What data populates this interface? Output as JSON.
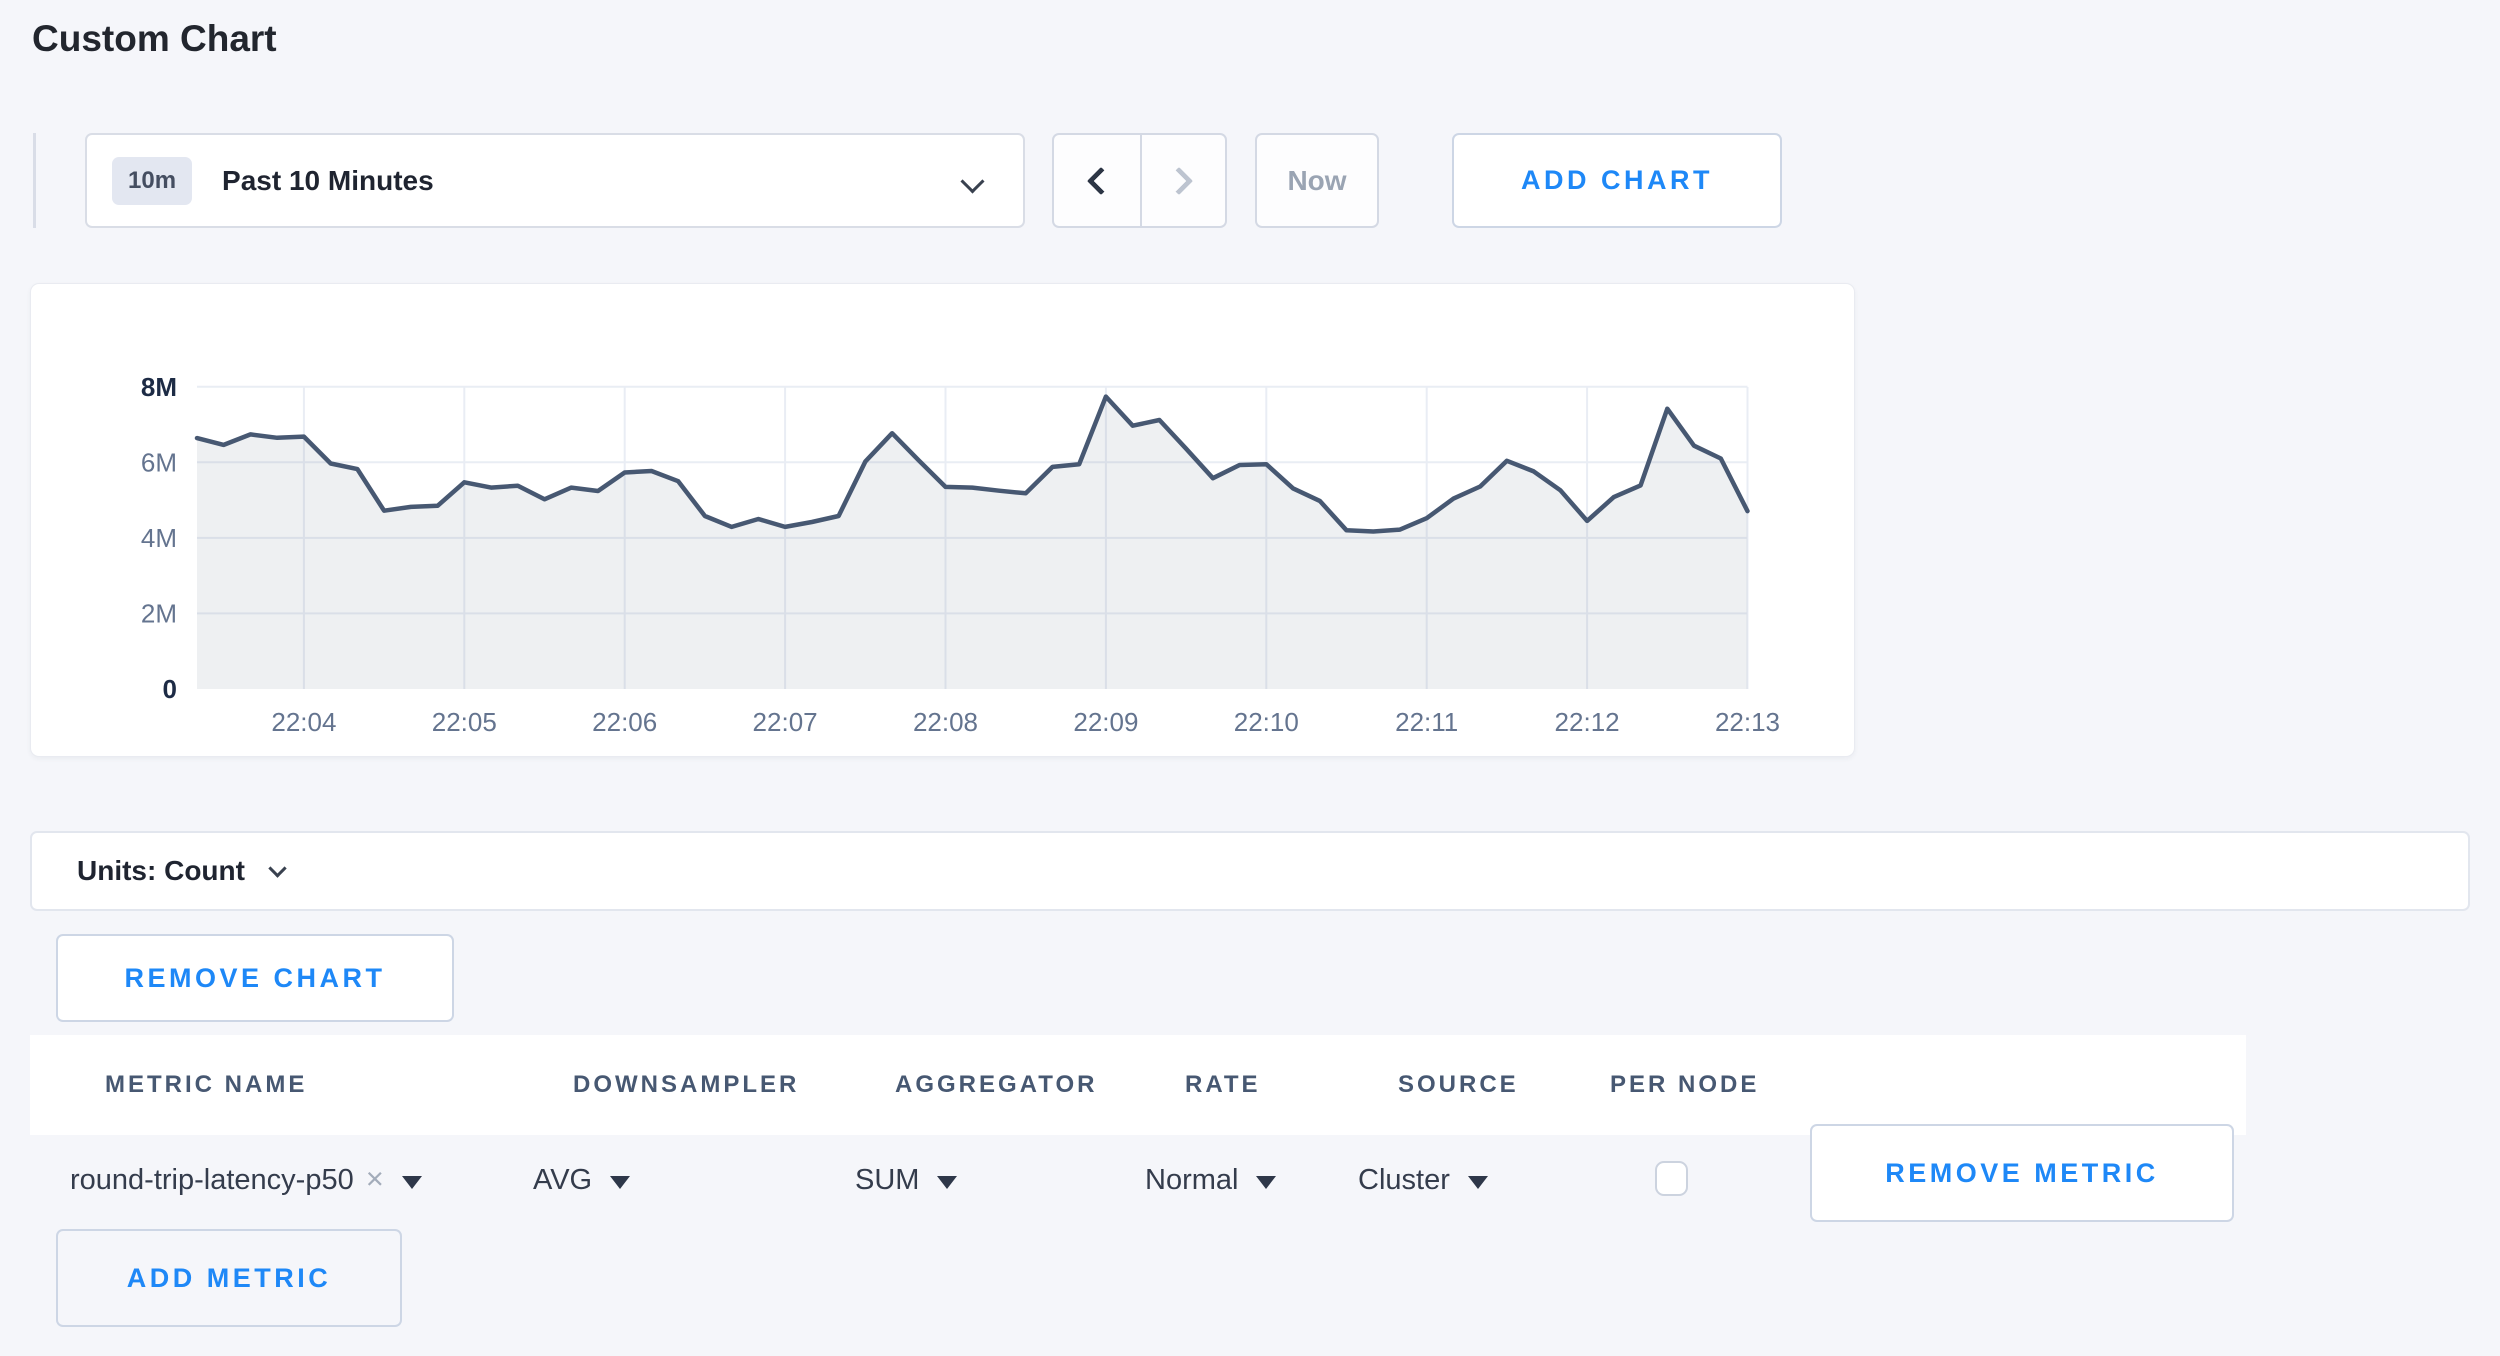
{
  "page": {
    "title": "Custom Chart"
  },
  "colors": {
    "accent_blue": "#1e88f7",
    "line": "#475872",
    "area_fill": "rgba(71,88,114,0.09)",
    "grid": "#e9edf4",
    "page_bg": "#f5f6fa"
  },
  "controls": {
    "timescale_badge": "10m",
    "timescale_label": "Past 10 Minutes",
    "now_label": "Now",
    "add_chart_label": "ADD CHART"
  },
  "units_bar": {
    "label": "Units: Count"
  },
  "remove_chart_label": "REMOVE CHART",
  "metric_table": {
    "headers": [
      "METRIC NAME",
      "DOWNSAMPLER",
      "AGGREGATOR",
      "RATE",
      "SOURCE",
      "PER NODE"
    ],
    "row": {
      "metric_name": "round-trip-latency-p50",
      "clear_icon": "×",
      "downsampler": "AVG",
      "aggregator": "SUM",
      "rate": "Normal",
      "source": "Cluster",
      "per_node_checked": false,
      "remove_label": "REMOVE METRIC"
    },
    "add_metric_label": "ADD METRIC"
  },
  "chart_data": {
    "type": "area",
    "title": "",
    "unit": "count",
    "start_time": "22:03:20",
    "interval_seconds": 10,
    "x_tick_labels": [
      "22:04",
      "22:05",
      "22:06",
      "22:07",
      "22:08",
      "22:09",
      "22:10",
      "22:11",
      "22:12",
      "22:13"
    ],
    "x_tick_indices": [
      4,
      10,
      16,
      22,
      28,
      34,
      40,
      46,
      52,
      58
    ],
    "y_tick_labels": [
      "0",
      "2M",
      "4M",
      "6M",
      "8M"
    ],
    "ylim": [
      0,
      8000000
    ],
    "grid": true,
    "legend": "none",
    "values_millions": [
      6.64,
      6.46,
      6.74,
      6.65,
      6.68,
      5.97,
      5.82,
      4.72,
      4.82,
      4.85,
      5.47,
      5.33,
      5.38,
      5.02,
      5.33,
      5.24,
      5.73,
      5.77,
      5.5,
      4.58,
      4.29,
      4.5,
      4.29,
      4.42,
      4.58,
      6.02,
      6.77,
      6.05,
      5.35,
      5.33,
      5.25,
      5.18,
      5.88,
      5.95,
      7.74,
      6.97,
      7.12,
      6.36,
      5.58,
      5.93,
      5.95,
      5.31,
      4.98,
      4.2,
      4.17,
      4.22,
      4.52,
      5.04,
      5.36,
      6.04,
      5.76,
      5.26,
      4.45,
      5.08,
      5.39,
      7.42,
      6.44,
      6.1,
      4.71
    ]
  }
}
